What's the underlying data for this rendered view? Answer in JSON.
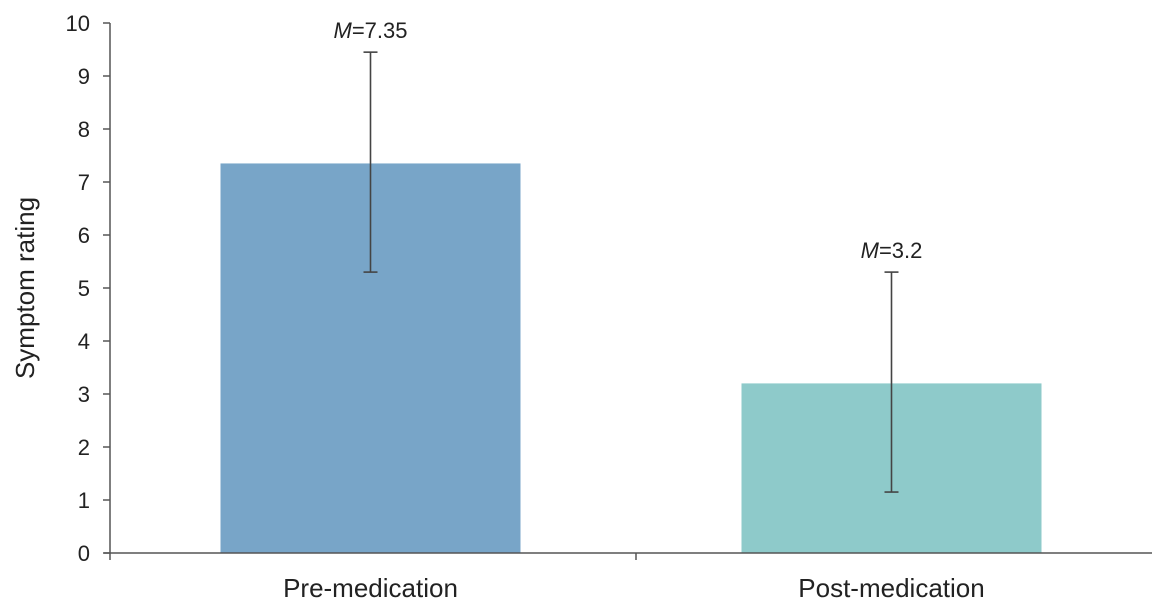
{
  "chart_data": {
    "type": "bar",
    "title": "",
    "xlabel": "",
    "ylabel": "Symptom rating",
    "ylim": [
      0,
      10
    ],
    "yticks": [
      "0",
      "1",
      "2",
      "3",
      "4",
      "5",
      "6",
      "7",
      "8",
      "9",
      "10"
    ],
    "categories": [
      "Pre-medication",
      "Post-medication"
    ],
    "values": [
      7.35,
      3.2
    ],
    "error_low": [
      5.3,
      1.15
    ],
    "error_high": [
      9.45,
      5.3
    ],
    "data_labels": [
      {
        "prefix": "M",
        "suffix": "=7.35"
      },
      {
        "prefix": "M",
        "suffix": "=3.2"
      }
    ],
    "colors": [
      "#78a5c8",
      "#8ecaca"
    ],
    "grid": false,
    "legend": "none"
  }
}
